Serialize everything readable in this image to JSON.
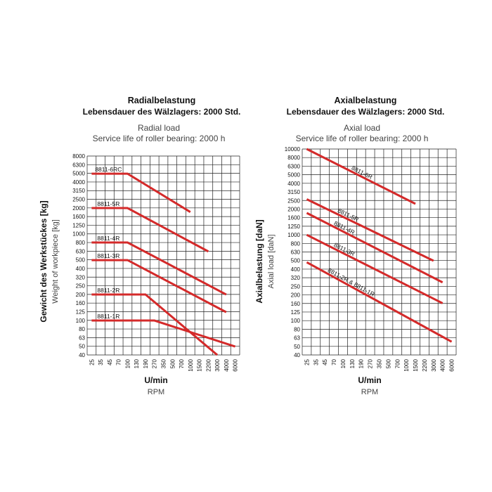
{
  "chart_data": [
    {
      "type": "line",
      "title": "Radialbelastung",
      "subtitle": "Lebensdauer des Wälzlagers: 2000 Std.",
      "title_en": "Radial load",
      "subtitle_en": "Service life of roller bearing: 2000 h",
      "xlabel": "U/min",
      "xlabel_en": "RPM",
      "ylabel": "Gewicht des Werkstückes [kg]",
      "ylabel_en": "Weight of workpiece [kg]",
      "x_ticks": [
        "25",
        "35",
        "45",
        "70",
        "100",
        "130",
        "190",
        "270",
        "350",
        "500",
        "700",
        "1000",
        "1500",
        "2200",
        "3000",
        "4000",
        "6000"
      ],
      "y_ticks": [
        "40",
        "50",
        "63",
        "80",
        "100",
        "125",
        "160",
        "200",
        "250",
        "320",
        "400",
        "500",
        "630",
        "800",
        "1000",
        "1250",
        "1600",
        "2000",
        "2500",
        "3150",
        "4000",
        "5000",
        "6300",
        "8000"
      ],
      "x_scale": "categorical (log-spaced)",
      "y_scale": "log",
      "series": [
        {
          "name": "8811-6RC",
          "x": [
            "25",
            "100",
            "1000"
          ],
          "y": [
            5000,
            5000,
            1800
          ]
        },
        {
          "name": "8811-5R",
          "x": [
            "25",
            "100",
            "2200"
          ],
          "y": [
            2000,
            2000,
            630
          ]
        },
        {
          "name": "8811-4R",
          "x": [
            "25",
            "100",
            "4000"
          ],
          "y": [
            800,
            800,
            200
          ]
        },
        {
          "name": "8811-3R",
          "x": [
            "25",
            "100",
            "4000"
          ],
          "y": [
            500,
            500,
            125
          ]
        },
        {
          "name": "8811-2R",
          "x": [
            "25",
            "190",
            "3000"
          ],
          "y": [
            200,
            200,
            40
          ]
        },
        {
          "name": "8811-1R",
          "x": [
            "25",
            "270",
            "6000"
          ],
          "y": [
            100,
            100,
            50
          ]
        }
      ]
    },
    {
      "type": "line",
      "title": "Axialbelastung",
      "subtitle": "Lebensdauer des Wälzlagers: 2000 Std.",
      "title_en": "Axial load",
      "subtitle_en": "Service life of roller bearing: 2000 h",
      "xlabel": "U/min",
      "xlabel_en": "RPM",
      "ylabel": "Axialbelastung [daN]",
      "ylabel_en": "Axial load [daN]",
      "x_ticks": [
        "25",
        "35",
        "45",
        "70",
        "100",
        "130",
        "190",
        "270",
        "350",
        "500",
        "700",
        "1000",
        "1500",
        "2200",
        "3000",
        "4000",
        "6000"
      ],
      "y_ticks": [
        "40",
        "50",
        "63",
        "80",
        "100",
        "125",
        "160",
        "200",
        "250",
        "320",
        "400",
        "500",
        "630",
        "800",
        "1000",
        "1250",
        "1600",
        "2000",
        "2500",
        "3150",
        "4000",
        "5000",
        "6300",
        "8000",
        "10000"
      ],
      "x_scale": "categorical (log-spaced)",
      "y_scale": "log",
      "series": [
        {
          "name": "8811-6R",
          "x": [
            "25",
            "1500"
          ],
          "y": [
            10000,
            2300
          ]
        },
        {
          "name": "8811-5R",
          "x": [
            "25",
            "3000"
          ],
          "y": [
            2600,
            500
          ]
        },
        {
          "name": "8811-4R",
          "x": [
            "25",
            "4000"
          ],
          "y": [
            1800,
            280
          ]
        },
        {
          "name": "8811-3R",
          "x": [
            "25",
            "4000"
          ],
          "y": [
            1000,
            160
          ]
        },
        {
          "name": "8811-2R & 8811-1R",
          "x": [
            "25",
            "6000"
          ],
          "y": [
            480,
            57
          ]
        }
      ]
    }
  ]
}
